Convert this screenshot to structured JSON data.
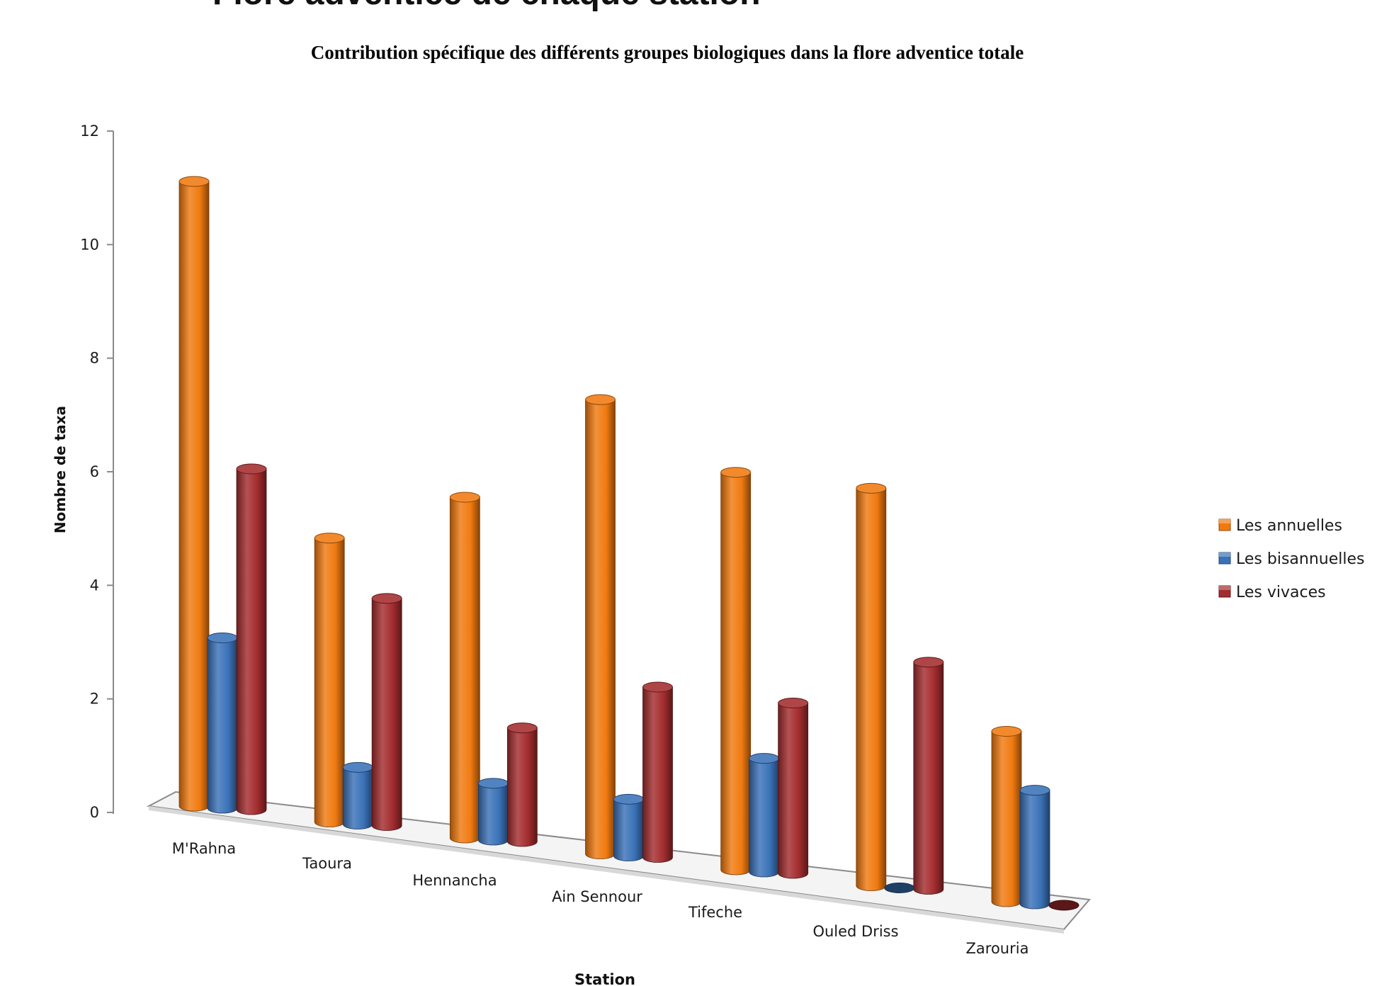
{
  "page": {
    "heading": "Flore adventice de chaque station"
  },
  "chart_data": {
    "type": "bar",
    "title": "Contribution spécifique des différents groupes biologiques dans la flore adventice totale",
    "xlabel": "Station",
    "ylabel": "Nombre de taxa",
    "ylim": [
      0,
      12
    ],
    "yticks": [
      "0",
      "2",
      "4",
      "6",
      "8",
      "10",
      "12"
    ],
    "categories": [
      "M'Rahna",
      "Taoura",
      "Hennancha",
      "Ain Sennour",
      "Tifeche",
      "Ouled Driss",
      "Zarouria"
    ],
    "series": [
      {
        "name": "Les annuelles",
        "color": "#F07A10",
        "values": [
          11,
          5,
          6,
          8,
          7,
          7,
          3
        ]
      },
      {
        "name": "Les bisannuelles",
        "color": "#3A72B8",
        "values": [
          3,
          1,
          1,
          1,
          2,
          0,
          2
        ]
      },
      {
        "name": "Les vivaces",
        "color": "#A32C2E",
        "values": [
          6,
          4,
          2,
          3,
          3,
          4,
          0
        ]
      }
    ],
    "legend_position": "right",
    "style": "3d-cylinder",
    "grid": false
  }
}
